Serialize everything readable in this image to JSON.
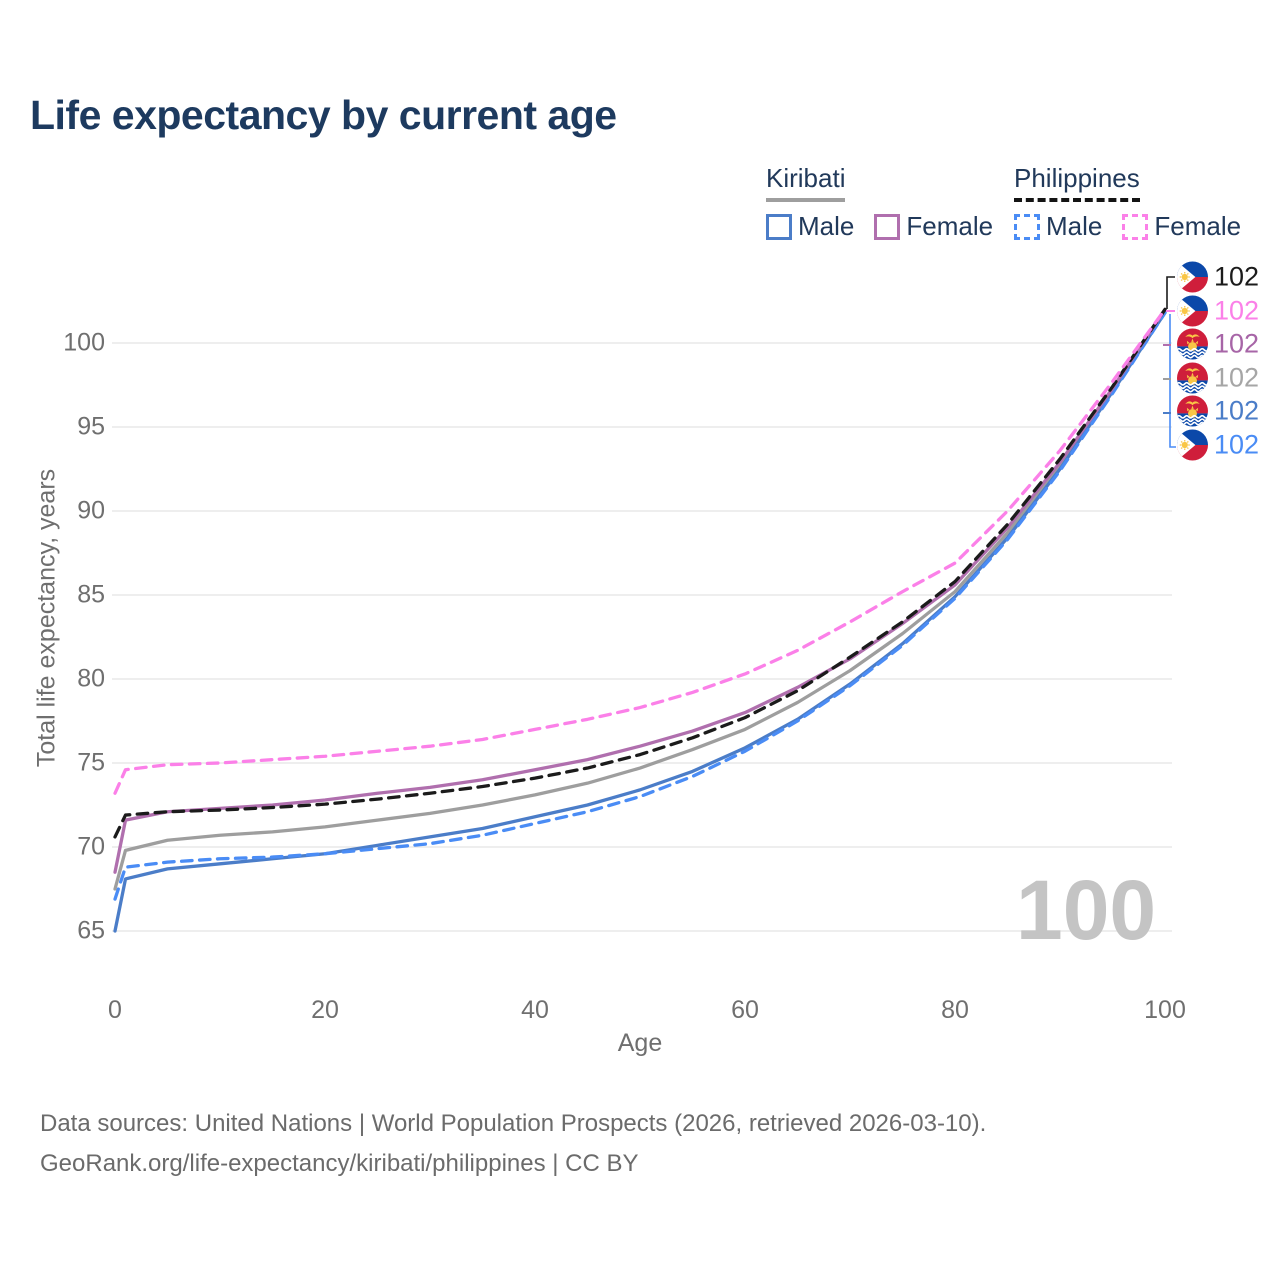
{
  "title": "Life expectancy by current age",
  "watermark": "100",
  "legend": {
    "groups": [
      {
        "label": "Kiribati",
        "line": "solid",
        "underline_color": "#9e9e9e",
        "items": [
          {
            "label": "Male",
            "color": "#4b7dc8",
            "dash": false
          },
          {
            "label": "Female",
            "color": "#b06fae",
            "dash": false
          }
        ]
      },
      {
        "label": "Philippines",
        "line": "dashed",
        "underline_color": "#141414",
        "items": [
          {
            "label": "Male",
            "color": "#4a8cf5",
            "dash": true
          },
          {
            "label": "Female",
            "color": "#fb80e8",
            "dash": true
          }
        ]
      }
    ]
  },
  "axes": {
    "x": {
      "label": "Age",
      "ticks": [
        0,
        20,
        40,
        60,
        80,
        100
      ]
    },
    "y": {
      "label": "Total life expectancy, years",
      "ticks": [
        65,
        70,
        75,
        80,
        85,
        90,
        95,
        100
      ]
    }
  },
  "footer": {
    "line1": "Data sources: United Nations | World Population Prospects (2026, retrieved 2026-03-10).",
    "line2": "GeoRank.org/life-expectancy/kiribati/philippines | CC BY"
  },
  "chart_data": {
    "type": "line",
    "title": "Life expectancy by current age",
    "xlabel": "Age",
    "ylabel": "Total life expectancy, years",
    "xlim": [
      0,
      100
    ],
    "ylim": [
      64,
      103
    ],
    "grid": "horizontal",
    "legend_position": "top-right",
    "x": [
      0,
      1,
      5,
      10,
      15,
      20,
      25,
      30,
      35,
      40,
      45,
      50,
      55,
      60,
      65,
      70,
      75,
      80,
      85,
      90,
      95,
      100
    ],
    "series": [
      {
        "id": "philippines-total",
        "name": "Philippines — Total",
        "color": "#1b1b1b",
        "dash": true,
        "flag": "philippines",
        "end_label": "102",
        "label_color": "#1b1b1b",
        "values": [
          70.6,
          71.9,
          72.1,
          72.2,
          72.35,
          72.55,
          72.85,
          73.2,
          73.6,
          74.1,
          74.7,
          75.5,
          76.5,
          77.7,
          79.3,
          81.3,
          83.4,
          85.8,
          89.2,
          93.1,
          97.4,
          102
        ]
      },
      {
        "id": "philippines-female",
        "name": "Philippines — Female",
        "color": "#fb80e8",
        "dash": true,
        "flag": "philippines",
        "end_label": "102",
        "label_color": "#fb80e8",
        "values": [
          73.2,
          74.6,
          74.9,
          75.0,
          75.2,
          75.4,
          75.7,
          76.0,
          76.4,
          77.0,
          77.6,
          78.3,
          79.2,
          80.3,
          81.7,
          83.4,
          85.2,
          86.9,
          90.0,
          93.6,
          97.7,
          102
        ]
      },
      {
        "id": "kiribati-female",
        "name": "Kiribati — Female",
        "color": "#b06fae",
        "dash": false,
        "flag": "kiribati",
        "end_label": "102",
        "label_color": "#a765a7",
        "values": [
          68.5,
          71.6,
          72.1,
          72.3,
          72.5,
          72.8,
          73.2,
          73.55,
          74.0,
          74.6,
          75.2,
          76.0,
          76.9,
          78.0,
          79.5,
          81.2,
          83.3,
          85.6,
          89.0,
          92.9,
          97.3,
          102
        ]
      },
      {
        "id": "kiribati-total",
        "name": "Kiribati — Total",
        "color": "#9e9e9e",
        "dash": false,
        "flag": "kiribati",
        "end_label": "102",
        "label_color": "#a6a6a6",
        "values": [
          67.5,
          69.8,
          70.4,
          70.7,
          70.9,
          71.2,
          71.6,
          72.0,
          72.5,
          73.1,
          73.8,
          74.7,
          75.8,
          77.0,
          78.6,
          80.5,
          82.7,
          85.2,
          88.7,
          92.7,
          97.2,
          101.9
        ]
      },
      {
        "id": "kiribati-male",
        "name": "Kiribati — Male",
        "color": "#4b7dc8",
        "dash": false,
        "flag": "kiribati",
        "end_label": "102",
        "label_color": "#4b7dc8",
        "values": [
          65.0,
          68.1,
          68.7,
          69.0,
          69.3,
          69.6,
          70.1,
          70.6,
          71.1,
          71.8,
          72.5,
          73.4,
          74.5,
          75.9,
          77.6,
          79.7,
          82.1,
          84.9,
          88.4,
          92.5,
          97.1,
          101.8
        ]
      },
      {
        "id": "philippines-male",
        "name": "Philippines — Male",
        "color": "#4a8cf5",
        "dash": true,
        "flag": "philippines",
        "end_label": "102",
        "label_color": "#4a8cf5",
        "values": [
          66.9,
          68.8,
          69.1,
          69.3,
          69.4,
          69.6,
          69.9,
          70.2,
          70.7,
          71.4,
          72.1,
          73.0,
          74.2,
          75.7,
          77.5,
          79.6,
          82.0,
          84.8,
          88.3,
          92.4,
          97.0,
          101.8
        ]
      }
    ]
  }
}
